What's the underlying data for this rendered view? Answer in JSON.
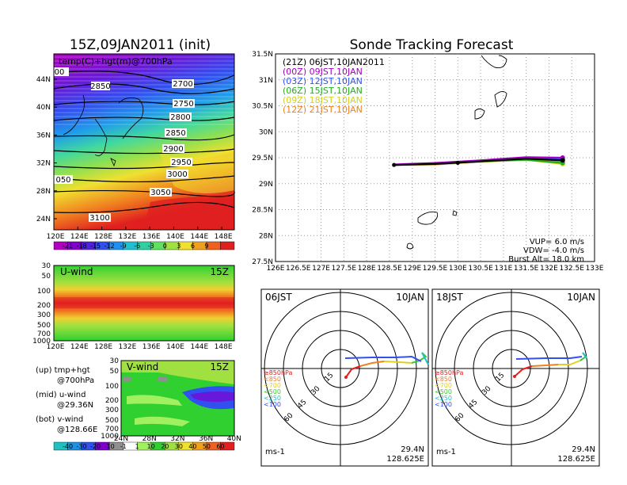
{
  "left_title": "15Z,09JAN2011 (init)",
  "right_title": "Sonde Tracking Forecast",
  "panel_700": {
    "label": "temp(C)+hgt(m)@700hPa",
    "lat_ticks": [
      "44N",
      "40N",
      "36N",
      "32N",
      "28N",
      "24N"
    ],
    "lon_ticks": [
      "120E",
      "124E",
      "128E",
      "132E",
      "136E",
      "140E",
      "144E",
      "148E"
    ],
    "contours": [
      "2700",
      "2750",
      "2800",
      "2850",
      "2900",
      "2950",
      "3000",
      "3050",
      "3100"
    ],
    "contour_extra": [
      "2850",
      "050",
      "00"
    ],
    "colorbar": [
      "-21",
      "-18",
      "-15",
      "-12",
      "-9",
      "-6",
      "-3",
      "0",
      "3",
      "6",
      "9"
    ],
    "colorbar_colors": [
      "#b000c0",
      "#8000d0",
      "#5020e0",
      "#3050f0",
      "#2090f0",
      "#20c0d0",
      "#30d0a0",
      "#60e060",
      "#a0e040",
      "#f0e030",
      "#f0a020",
      "#f06020",
      "#e02020"
    ]
  },
  "panel_u": {
    "label": "U-wind",
    "time": "15Z",
    "p_ticks": [
      "30",
      "50",
      "100",
      "200",
      "300",
      "500",
      "700",
      "1000"
    ],
    "lon_ticks": [
      "120E",
      "124E",
      "128E",
      "132E",
      "136E",
      "140E",
      "144E",
      "148E"
    ]
  },
  "panel_v": {
    "label": "V-wind",
    "time": "15Z",
    "p_ticks": [
      "30",
      "50",
      "100",
      "200",
      "300",
      "500",
      "700",
      "1000"
    ],
    "lat_ticks": [
      "24N",
      "28N",
      "32N",
      "36N",
      "40N"
    ],
    "colorbar": [
      "-40",
      "-30",
      "-20",
      "-10",
      "-1",
      "1",
      "10",
      "20",
      "30",
      "40",
      "50",
      "60"
    ],
    "colorbar_colors": [
      "#20c0c0",
      "#2090e0",
      "#3050f0",
      "#8000d0",
      "#909090",
      "#fff",
      "#a0f060",
      "#30d030",
      "#a0e040",
      "#f0e030",
      "#f0a020",
      "#f06020",
      "#e02020"
    ]
  },
  "legend_notes": [
    {
      "a": "(up) tmp+hgt",
      "b": "@700hPa"
    },
    {
      "a": "(mid) u-wind",
      "b": "@29.36N"
    },
    {
      "a": "(bot) v-wind",
      "b": "@128.66E"
    }
  ],
  "track_panel": {
    "lat_ticks": [
      "31.5N",
      "31N",
      "30.5N",
      "30N",
      "29.5N",
      "29N",
      "28.5N",
      "28N",
      "27.5N"
    ],
    "lon_ticks": [
      "126E",
      "126.5E",
      "127E",
      "127.5E",
      "128E",
      "128.5E",
      "129E",
      "129.5E",
      "130E",
      "130.5E",
      "131E",
      "131.5E",
      "132E",
      "132.5E",
      "133E"
    ],
    "legend": [
      {
        "label": "(21Z)  06JST,10JAN2011",
        "color": "#000000"
      },
      {
        "label": "(00Z)  09JST,10JAN",
        "color": "#a000c0"
      },
      {
        "label": "(03Z)  12JST,10JAN",
        "color": "#3050f0"
      },
      {
        "label": "(06Z)  15JST,10JAN",
        "color": "#20b020"
      },
      {
        "label": "(09Z)  18JST,10JAN",
        "color": "#d0d020"
      },
      {
        "label": "(12Z)  21JST,10JAN",
        "color": "#f08020"
      }
    ],
    "params": [
      "VUP=  6.0  m/s",
      "VDW=  -4.0  m/s",
      "Burst Alt=  18.0  km"
    ]
  },
  "polar_left": {
    "time": "06JST",
    "date": "10JAN",
    "pos1": "29.4N",
    "pos2": "128.625E",
    "units": "ms-1"
  },
  "polar_right": {
    "time": "18JST",
    "date": "10JAN",
    "pos1": "29.4N",
    "pos2": "128.625E",
    "units": "ms-1"
  },
  "polar_rings": [
    "15",
    "30",
    "45",
    "60"
  ],
  "polar_legend": [
    {
      "label": "≥850hPa",
      "color": "#e02020"
    },
    {
      "label": "<850",
      "color": "#f08020"
    },
    {
      "label": "<700",
      "color": "#e0d020"
    },
    {
      "label": "<500",
      "color": "#30d030"
    },
    {
      "label": "<250",
      "color": "#20c0d0"
    },
    {
      "label": "<100",
      "color": "#3050f0"
    }
  ],
  "chart_data": {
    "type": "line",
    "title": "Sonde Tracking Forecast",
    "xlim": [
      126,
      133
    ],
    "ylim": [
      27.5,
      31.5
    ],
    "series": [
      {
        "name": "(21Z)  06JST,10JAN2011",
        "x": [
          128.6,
          129.5,
          130.5,
          131.5,
          132.3
        ],
        "y": [
          29.36,
          29.38,
          29.43,
          29.48,
          29.45
        ]
      },
      {
        "name": "(00Z)  09JST,10JAN",
        "x": [
          128.6,
          129.5,
          130.5,
          131.5,
          132.3
        ],
        "y": [
          29.37,
          29.4,
          29.45,
          29.51,
          29.5
        ]
      },
      {
        "name": "(03Z)  12JST,10JAN",
        "x": [
          128.6,
          129.5,
          130.5,
          131.5,
          132.3
        ],
        "y": [
          29.36,
          29.39,
          29.44,
          29.49,
          29.47
        ]
      },
      {
        "name": "(06Z)  15JST,10JAN",
        "x": [
          128.6,
          129.5,
          130.5,
          131.5,
          132.3
        ],
        "y": [
          29.36,
          29.38,
          29.43,
          29.46,
          29.4
        ]
      },
      {
        "name": "(09Z)  18JST,10JAN",
        "x": [
          128.6,
          129.5,
          130.5,
          131.5,
          132.3
        ],
        "y": [
          29.36,
          29.38,
          29.42,
          29.46,
          29.38
        ]
      },
      {
        "name": "(12Z)  21JST,10JAN",
        "x": [
          128.6,
          129.5,
          130.5,
          131.5,
          132.3
        ],
        "y": [
          29.36,
          29.37,
          29.42,
          29.47,
          29.42
        ]
      }
    ]
  }
}
